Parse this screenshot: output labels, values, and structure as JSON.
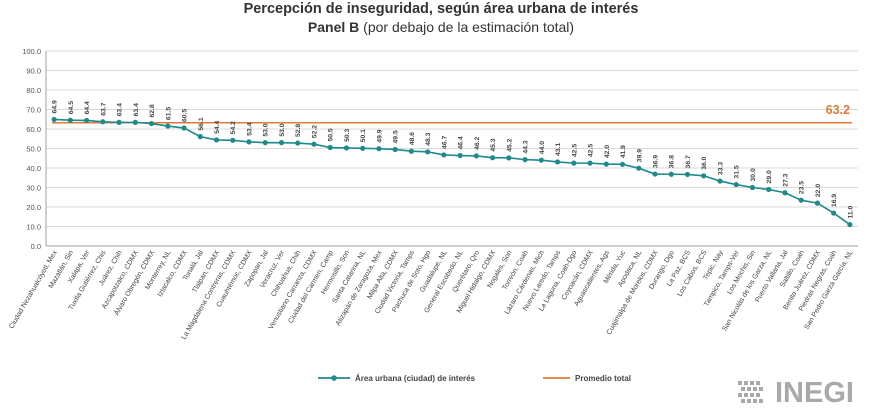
{
  "title": "Percepción de inseguridad, según área urbana de interés",
  "subtitle_bold": "Panel B",
  "subtitle_rest": " (por debajo de la estimación total)",
  "brand": "INEGI",
  "colors": {
    "series": "#1f8a8a",
    "average": "#e07b39",
    "grid": "#d9d9d9",
    "axis": "#a0a0a0"
  },
  "chart_data": {
    "type": "line",
    "ylim": [
      0,
      100
    ],
    "yticks": [
      "0.0",
      "10.0",
      "20.0",
      "30.0",
      "40.0",
      "50.0",
      "60.0",
      "70.0",
      "80.0",
      "90.0",
      "100.0"
    ],
    "categories": [
      "Ciudad Nezahualcóyotl, Mex",
      "Mazatlán, Sin",
      "Xalapa, Ver",
      "Tuxtla Gutiérrez, Chis",
      "Juárez, Chih",
      "Azcapotzalco, CDMX",
      "Álvaro Obregón, CDMX",
      "Monterrey, NL",
      "Iztacalco, CDMX",
      "Tonalá, Jal",
      "Tlalpan, CDMX",
      "La Magdalena Contreras, CDMX",
      "Cuauhtémoc, CDMX",
      "Zapopan, Jal",
      "Veracruz, Ver",
      "Chihuahua, Chih",
      "Venustiano Carranza, CDMX",
      "Ciudad del Carmen, Camp",
      "Hermosillo, Son",
      "Santa Catarina, NL",
      "Atizapán de Zaragoza, Mex",
      "Milpa Alta, CDMX",
      "Ciudad Victoria, Tamps",
      "Pachuca de Soto, Hgo",
      "Guadalupe, NL",
      "General Escobedo, NL",
      "Querétaro, Qro",
      "Miguel Hidalgo, CDMX",
      "Nogales, Son",
      "Torreón, Coah",
      "Lázaro Cárdenas, Mich",
      "Nuevo Laredo, Tamps",
      "La Laguna, Coah-Dgo",
      "Coyoacán, CDMX",
      "Aguascalientes, Ags",
      "Mérida, Yuc",
      "Apodaca, NL",
      "Cuajimalpa de Morelos, CDMX",
      "Durango, Dgo",
      "La Paz, BCS",
      "Los Cabos, BCS",
      "Tepic, Nay",
      "Tampico, Tamps-Ver",
      "Los Mochis, Sin",
      "San Nicolás de los Garza, NL",
      "Puerto Vallarta, Jal",
      "Saltillo, Coah",
      "Benito Juárez, CDMX",
      "Piedras Negras, Coah",
      "San Pedro Garza García, NL"
    ],
    "series": [
      {
        "name": "Área urbana (ciudad) de interés",
        "values": [
          64.9,
          64.5,
          64.4,
          63.7,
          63.4,
          63.4,
          62.8,
          61.5,
          60.5,
          56.1,
          54.4,
          54.2,
          53.4,
          53.0,
          53.0,
          52.8,
          52.2,
          50.5,
          50.3,
          50.1,
          49.9,
          49.5,
          48.6,
          48.3,
          46.7,
          46.4,
          46.2,
          45.3,
          45.2,
          44.3,
          44.0,
          43.1,
          42.5,
          42.5,
          42.0,
          41.9,
          39.9,
          36.9,
          36.8,
          36.7,
          36.0,
          33.3,
          31.5,
          30.0,
          29.0,
          27.3,
          23.5,
          22.0,
          16.9,
          11.0
        ]
      },
      {
        "name": "Promedio total",
        "value": 63.2
      }
    ],
    "data_labels": [
      "64.9",
      "64.5",
      "64.4",
      "63.7",
      "63.4",
      "63.4",
      "62.8",
      "61.5",
      "60.5",
      "56.1",
      "54.4",
      "54.2",
      "53.4",
      "53.0",
      "53.0",
      "52.8",
      "52.2",
      "50.5",
      "50.3",
      "50.1",
      "49.9",
      "49.5",
      "48.6",
      "48.3",
      "46.7",
      "46.4",
      "46.2",
      "45.3",
      "45.2",
      "44.3",
      "44.0",
      "43.1",
      "42.5",
      "42.5",
      "42.0",
      "41.9",
      "39.9",
      "36.9",
      "36.8",
      "36.7",
      "36.0",
      "33.3",
      "31.5",
      "30.0",
      "29.0",
      "27.3",
      "23.5",
      "22.0",
      "16.9",
      "11.0"
    ],
    "average_label": "63.2",
    "grid": true,
    "legend_position": "bottom"
  }
}
